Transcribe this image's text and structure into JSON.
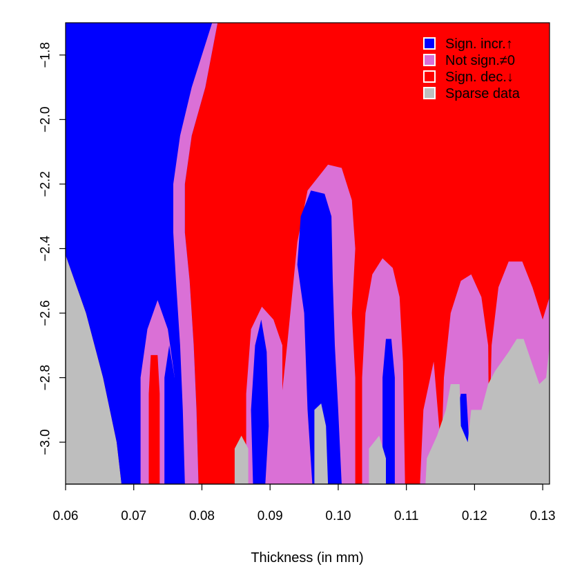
{
  "chart_data": {
    "type": "heatmap",
    "title": "",
    "xlabel": "Thickness (in mm)",
    "ylabel": "",
    "xlim": [
      0.06,
      0.131
    ],
    "ylim": [
      -3.13,
      -1.7
    ],
    "x_ticks": [
      0.06,
      0.07,
      0.08,
      0.09,
      0.1,
      0.11,
      0.12,
      0.13
    ],
    "x_tick_labels": [
      "0.06",
      "0.07",
      "0.08",
      "0.09",
      "0.10",
      "0.11",
      "0.12",
      "0.13"
    ],
    "y_ticks": [
      -1.8,
      -2.0,
      -2.2,
      -2.4,
      -2.6,
      -2.8,
      -3.0
    ],
    "y_tick_labels": [
      "−1.8",
      "−2.0",
      "−2.2",
      "−2.4",
      "−2.6",
      "−2.8",
      "−3.0"
    ],
    "legend": {
      "position": "top-right",
      "entries": [
        {
          "label": "Sign. incr.↑",
          "color": "#0000ff"
        },
        {
          "label": "Not sign.≠0",
          "color": "#da70d6"
        },
        {
          "label": "Sign. dec.↓",
          "color": "#ff0000"
        },
        {
          "label": "Sparse data",
          "color": "#bebebe"
        }
      ]
    },
    "background_color": "#ff0000",
    "regions": [
      {
        "category": "sparse",
        "color": "#bebebe",
        "points": [
          [
            0.06,
            -2.42
          ],
          [
            0.063,
            -2.6
          ],
          [
            0.0655,
            -2.8
          ],
          [
            0.0675,
            -3.0
          ],
          [
            0.0682,
            -3.13
          ],
          [
            0.06,
            -3.13
          ]
        ]
      },
      {
        "category": "increase",
        "color": "#0000ff",
        "points": [
          [
            0.06,
            -1.7
          ],
          [
            0.0823,
            -1.7
          ],
          [
            0.0805,
            -1.9
          ],
          [
            0.0785,
            -2.05
          ],
          [
            0.0775,
            -2.2
          ],
          [
            0.0775,
            -2.35
          ],
          [
            0.0782,
            -2.5
          ],
          [
            0.0788,
            -2.7
          ],
          [
            0.0792,
            -2.9
          ],
          [
            0.0795,
            -3.13
          ],
          [
            0.0682,
            -3.13
          ],
          [
            0.0675,
            -3.0
          ],
          [
            0.0655,
            -2.8
          ],
          [
            0.063,
            -2.6
          ],
          [
            0.06,
            -2.42
          ]
        ]
      },
      {
        "category": "not_significant",
        "color": "#da70d6",
        "points": [
          [
            0.0815,
            -1.7
          ],
          [
            0.0823,
            -1.7
          ],
          [
            0.0805,
            -1.9
          ],
          [
            0.0785,
            -2.05
          ],
          [
            0.0775,
            -2.2
          ],
          [
            0.0775,
            -2.35
          ],
          [
            0.0782,
            -2.5
          ],
          [
            0.0788,
            -2.7
          ],
          [
            0.0792,
            -2.9
          ],
          [
            0.0795,
            -3.13
          ],
          [
            0.0775,
            -3.13
          ],
          [
            0.0772,
            -2.9
          ],
          [
            0.0768,
            -2.7
          ],
          [
            0.0762,
            -2.5
          ],
          [
            0.0758,
            -2.35
          ],
          [
            0.0758,
            -2.2
          ],
          [
            0.0768,
            -2.05
          ],
          [
            0.0785,
            -1.9
          ]
        ]
      },
      {
        "category": "not_significant",
        "color": "#da70d6",
        "points": [
          [
            0.071,
            -3.13
          ],
          [
            0.071,
            -2.8
          ],
          [
            0.072,
            -2.65
          ],
          [
            0.0735,
            -2.56
          ],
          [
            0.075,
            -2.65
          ],
          [
            0.076,
            -2.8
          ],
          [
            0.076,
            -3.13
          ]
        ]
      },
      {
        "category": "increase",
        "color": "#0000ff",
        "points": [
          [
            0.0745,
            -3.13
          ],
          [
            0.0745,
            -2.8
          ],
          [
            0.0752,
            -2.7
          ],
          [
            0.076,
            -2.8
          ],
          [
            0.0762,
            -3.13
          ]
        ]
      },
      {
        "category": "decrease",
        "color": "#ff0000",
        "points": [
          [
            0.0722,
            -3.13
          ],
          [
            0.0722,
            -2.85
          ],
          [
            0.0725,
            -2.73
          ],
          [
            0.0735,
            -2.73
          ],
          [
            0.0738,
            -2.85
          ],
          [
            0.0738,
            -3.13
          ]
        ]
      },
      {
        "category": "not_significant",
        "color": "#da70d6",
        "points": [
          [
            0.0865,
            -3.13
          ],
          [
            0.0865,
            -2.85
          ],
          [
            0.0872,
            -2.65
          ],
          [
            0.0888,
            -2.58
          ],
          [
            0.0905,
            -2.62
          ],
          [
            0.0918,
            -2.7
          ],
          [
            0.0918,
            -3.13
          ]
        ]
      },
      {
        "category": "increase",
        "color": "#0000ff",
        "points": [
          [
            0.0875,
            -3.13
          ],
          [
            0.0872,
            -2.9
          ],
          [
            0.0878,
            -2.7
          ],
          [
            0.0887,
            -2.62
          ],
          [
            0.0895,
            -2.72
          ],
          [
            0.0898,
            -2.95
          ],
          [
            0.0893,
            -3.13
          ]
        ]
      },
      {
        "category": "decrease",
        "color": "#ff0000",
        "points": [
          [
            0.0922,
            -2.95
          ],
          [
            0.0918,
            -2.82
          ],
          [
            0.0922,
            -2.73
          ],
          [
            0.0928,
            -2.73
          ],
          [
            0.0932,
            -2.85
          ],
          [
            0.0928,
            -2.95
          ]
        ]
      },
      {
        "category": "sparse",
        "color": "#bebebe",
        "points": [
          [
            0.0848,
            -3.13
          ],
          [
            0.0848,
            -3.02
          ],
          [
            0.0858,
            -2.98
          ],
          [
            0.0868,
            -3.02
          ],
          [
            0.0868,
            -3.13
          ]
        ]
      },
      {
        "category": "not_significant",
        "color": "#da70d6",
        "points": [
          [
            0.0915,
            -3.13
          ],
          [
            0.0915,
            -2.9
          ],
          [
            0.0925,
            -2.7
          ],
          [
            0.094,
            -2.38
          ],
          [
            0.0955,
            -2.22
          ],
          [
            0.0985,
            -2.14
          ],
          [
            0.1005,
            -2.15
          ],
          [
            0.102,
            -2.25
          ],
          [
            0.1025,
            -2.4
          ],
          [
            0.102,
            -2.6
          ],
          [
            0.1025,
            -2.8
          ],
          [
            0.1025,
            -3.13
          ]
        ]
      },
      {
        "category": "increase",
        "color": "#0000ff",
        "points": [
          [
            0.094,
            -2.45
          ],
          [
            0.0945,
            -2.3
          ],
          [
            0.096,
            -2.22
          ],
          [
            0.098,
            -2.23
          ],
          [
            0.099,
            -2.3
          ],
          [
            0.0992,
            -2.5
          ],
          [
            0.0995,
            -2.7
          ],
          [
            0.1,
            -2.9
          ],
          [
            0.1005,
            -3.13
          ],
          [
            0.0962,
            -3.13
          ],
          [
            0.0955,
            -2.9
          ],
          [
            0.095,
            -2.6
          ]
        ]
      },
      {
        "category": "sparse",
        "color": "#bebebe",
        "points": [
          [
            0.0965,
            -3.13
          ],
          [
            0.0965,
            -2.9
          ],
          [
            0.0975,
            -2.88
          ],
          [
            0.0982,
            -2.95
          ],
          [
            0.0985,
            -3.13
          ]
        ]
      },
      {
        "category": "not_significant",
        "color": "#da70d6",
        "points": [
          [
            0.1035,
            -3.13
          ],
          [
            0.1035,
            -2.8
          ],
          [
            0.104,
            -2.6
          ],
          [
            0.105,
            -2.48
          ],
          [
            0.1065,
            -2.43
          ],
          [
            0.108,
            -2.46
          ],
          [
            0.109,
            -2.55
          ],
          [
            0.1095,
            -2.75
          ],
          [
            0.1098,
            -3.13
          ]
        ]
      },
      {
        "category": "increase",
        "color": "#0000ff",
        "points": [
          [
            0.1065,
            -3.13
          ],
          [
            0.1065,
            -2.8
          ],
          [
            0.107,
            -2.68
          ],
          [
            0.1078,
            -2.68
          ],
          [
            0.1083,
            -2.8
          ],
          [
            0.1083,
            -3.13
          ]
        ]
      },
      {
        "category": "sparse",
        "color": "#bebebe",
        "points": [
          [
            0.1045,
            -3.13
          ],
          [
            0.1045,
            -3.02
          ],
          [
            0.106,
            -2.98
          ],
          [
            0.107,
            -3.05
          ],
          [
            0.107,
            -3.13
          ]
        ]
      },
      {
        "category": "not_significant",
        "color": "#da70d6",
        "points": [
          [
            0.112,
            -3.13
          ],
          [
            0.1125,
            -2.9
          ],
          [
            0.114,
            -2.75
          ],
          [
            0.115,
            -3.0
          ],
          [
            0.115,
            -3.13
          ]
        ]
      },
      {
        "category": "not_significant",
        "color": "#da70d6",
        "points": [
          [
            0.115,
            -3.13
          ],
          [
            0.1155,
            -2.8
          ],
          [
            0.1165,
            -2.6
          ],
          [
            0.118,
            -2.5
          ],
          [
            0.1195,
            -2.48
          ],
          [
            0.121,
            -2.55
          ],
          [
            0.122,
            -2.7
          ],
          [
            0.1222,
            -3.13
          ]
        ]
      },
      {
        "category": "not_significant",
        "color": "#da70d6",
        "points": [
          [
            0.122,
            -3.13
          ],
          [
            0.1225,
            -2.7
          ],
          [
            0.1235,
            -2.52
          ],
          [
            0.125,
            -2.44
          ],
          [
            0.127,
            -2.44
          ],
          [
            0.1285,
            -2.52
          ],
          [
            0.13,
            -2.62
          ],
          [
            0.131,
            -2.55
          ],
          [
            0.131,
            -3.13
          ]
        ]
      },
      {
        "category": "increase",
        "color": "#0000ff",
        "points": [
          [
            0.1175,
            -3.13
          ],
          [
            0.1175,
            -2.9
          ],
          [
            0.118,
            -2.85
          ],
          [
            0.1188,
            -2.85
          ],
          [
            0.1192,
            -3.0
          ],
          [
            0.1188,
            -3.13
          ]
        ]
      },
      {
        "category": "sparse",
        "color": "#bebebe",
        "points": [
          [
            0.1128,
            -3.13
          ],
          [
            0.113,
            -3.05
          ],
          [
            0.1145,
            -2.98
          ],
          [
            0.1158,
            -2.9
          ],
          [
            0.1165,
            -2.82
          ],
          [
            0.1178,
            -2.82
          ],
          [
            0.118,
            -2.95
          ],
          [
            0.119,
            -3.0
          ],
          [
            0.1195,
            -2.9
          ],
          [
            0.121,
            -2.9
          ],
          [
            0.122,
            -2.82
          ],
          [
            0.123,
            -2.78
          ],
          [
            0.125,
            -2.72
          ],
          [
            0.1262,
            -2.68
          ],
          [
            0.1272,
            -2.68
          ],
          [
            0.1285,
            -2.76
          ],
          [
            0.1295,
            -2.82
          ],
          [
            0.1305,
            -2.8
          ],
          [
            0.131,
            -2.7
          ],
          [
            0.131,
            -3.13
          ]
        ]
      }
    ]
  }
}
